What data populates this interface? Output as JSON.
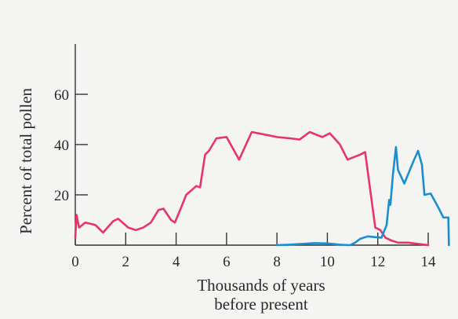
{
  "chart_data": {
    "type": "line",
    "title": "",
    "xlabel_line1": "Thousands of years",
    "xlabel_line2": "before present",
    "ylabel": "Percent of total pollen",
    "xlim": [
      0,
      14
    ],
    "ylim": [
      0,
      80
    ],
    "x_ticks": [
      0,
      2,
      4,
      6,
      8,
      10,
      12,
      14
    ],
    "x_tick_labels": [
      "0",
      "2",
      "4",
      "6",
      "8",
      "10",
      "12",
      "14"
    ],
    "y_ticks": [
      20,
      40,
      60
    ],
    "y_tick_labels": [
      "20",
      "40",
      "60"
    ],
    "grid": false,
    "series": [
      {
        "color": "#e8336b",
        "points": [
          [
            0,
            3
          ],
          [
            0.05,
            12
          ],
          [
            0.15,
            7
          ],
          [
            0.4,
            9
          ],
          [
            0.8,
            8
          ],
          [
            1.1,
            5
          ],
          [
            1.5,
            9.5
          ],
          [
            1.7,
            10.5
          ],
          [
            2.1,
            7
          ],
          [
            2.4,
            6
          ],
          [
            2.7,
            7
          ],
          [
            3.0,
            9
          ],
          [
            3.3,
            14
          ],
          [
            3.5,
            14.5
          ],
          [
            3.8,
            10
          ],
          [
            3.95,
            9
          ],
          [
            4.2,
            15
          ],
          [
            4.4,
            20
          ],
          [
            4.8,
            23.5
          ],
          [
            4.95,
            23
          ],
          [
            5.15,
            36
          ],
          [
            5.3,
            37.5
          ],
          [
            5.6,
            42.5
          ],
          [
            6.0,
            43
          ],
          [
            6.5,
            34
          ],
          [
            7.0,
            45
          ],
          [
            7.5,
            44
          ],
          [
            8.0,
            43
          ],
          [
            8.5,
            42.5
          ],
          [
            8.9,
            42
          ],
          [
            9.3,
            45
          ],
          [
            9.8,
            43
          ],
          [
            10.1,
            44.5
          ],
          [
            10.5,
            40
          ],
          [
            10.8,
            34
          ],
          [
            11.3,
            36
          ],
          [
            11.5,
            37
          ],
          [
            11.9,
            7
          ],
          [
            12.1,
            6
          ],
          [
            12.3,
            3
          ],
          [
            12.5,
            2
          ],
          [
            12.8,
            1
          ],
          [
            13.2,
            1
          ],
          [
            13.6,
            0.5
          ],
          [
            14.0,
            0
          ]
        ]
      },
      {
        "color": "#1a8fd0",
        "points": [
          [
            8.0,
            0
          ],
          [
            8.5,
            0.2
          ],
          [
            9.0,
            0.5
          ],
          [
            9.5,
            0.8
          ],
          [
            10.0,
            0.7
          ],
          [
            10.5,
            0.2
          ],
          [
            10.9,
            0
          ],
          [
            11.1,
            1
          ],
          [
            11.3,
            2.5
          ],
          [
            11.6,
            3.5
          ],
          [
            11.9,
            3.2
          ],
          [
            12.15,
            3
          ],
          [
            12.35,
            8
          ],
          [
            12.45,
            18
          ],
          [
            12.5,
            16
          ],
          [
            12.6,
            28
          ],
          [
            12.72,
            39
          ],
          [
            12.8,
            30
          ],
          [
            13.05,
            24.5
          ],
          [
            13.4,
            33
          ],
          [
            13.6,
            37.5
          ],
          [
            13.75,
            32
          ],
          [
            13.85,
            20
          ],
          [
            14.1,
            20.5
          ],
          [
            14.4,
            15
          ],
          [
            14.6,
            11
          ],
          [
            14.8,
            11
          ],
          [
            14.82,
            0
          ]
        ]
      }
    ]
  }
}
